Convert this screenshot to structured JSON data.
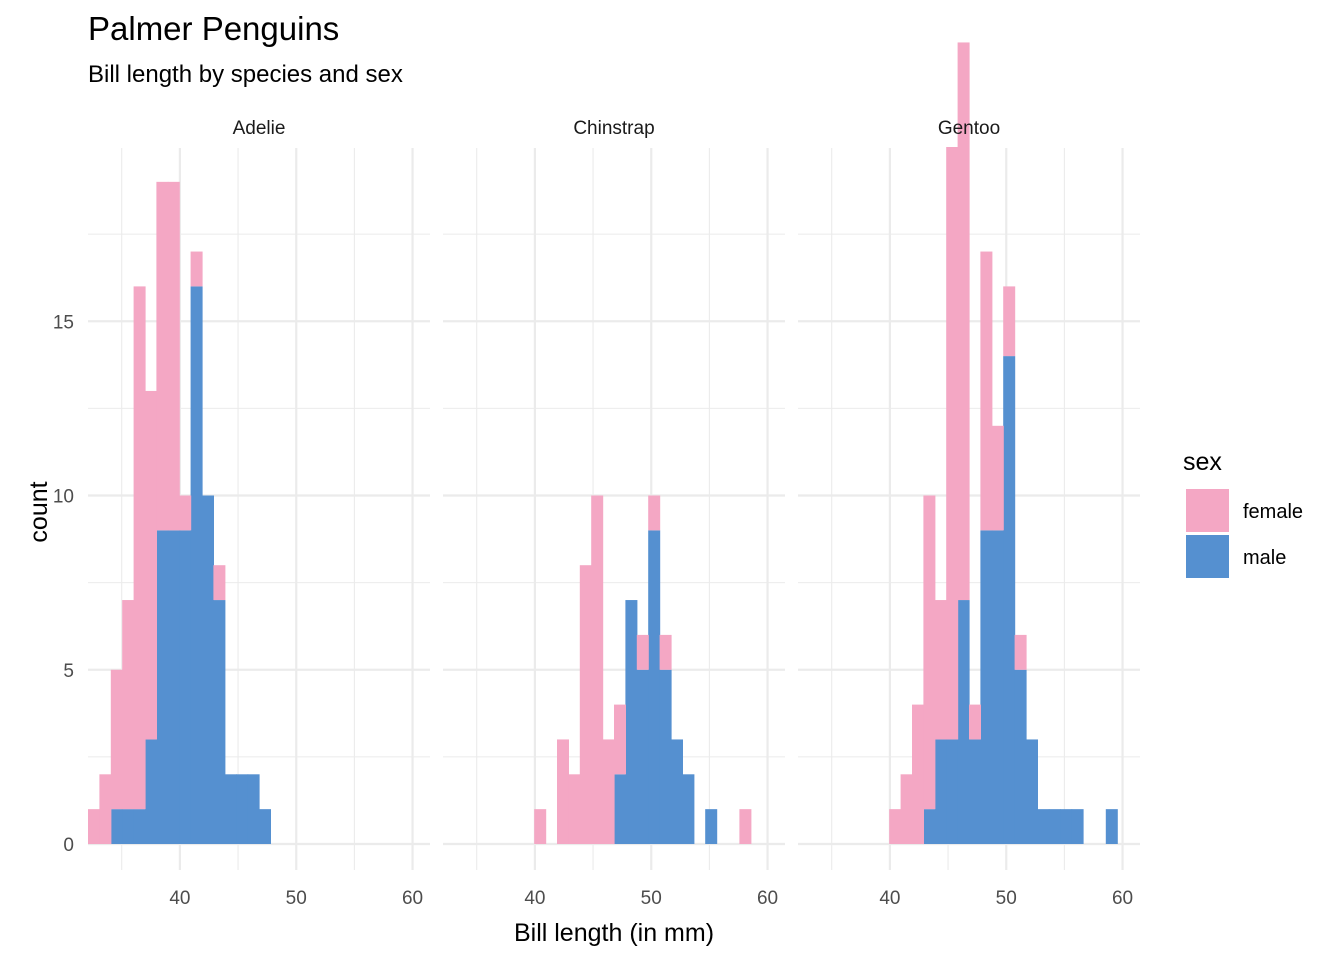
{
  "chart_data": {
    "type": "bar",
    "title": "Palmer Penguins",
    "subtitle": "Bill length by species and sex",
    "xlabel": "Bill length (in mm)",
    "ylabel": "count",
    "xlim": [
      32.1,
      61.5
    ],
    "ylim": [
      0,
      20
    ],
    "x_ticks": [
      40,
      50,
      60
    ],
    "y_ticks": [
      0,
      5,
      10,
      15
    ],
    "bin_width": 0.98,
    "bin_start": 32.1,
    "stacked": true,
    "grid": true,
    "legend": {
      "title": "sex",
      "position": "right"
    },
    "colors": {
      "female": "#f4a7c4",
      "male": "#5590d0"
    },
    "facets": [
      {
        "label": "Adelie",
        "series": [
          {
            "name": "female",
            "bins": [
              [
                0,
                1
              ],
              [
                1,
                2
              ],
              [
                2,
                4
              ],
              [
                3,
                6
              ],
              [
                4,
                15
              ],
              [
                5,
                10
              ],
              [
                6,
                10
              ],
              [
                7,
                10
              ],
              [
                8,
                1
              ],
              [
                9,
                1
              ],
              [
                10,
                0
              ],
              [
                11,
                1
              ],
              [
                12,
                0
              ]
            ]
          },
          {
            "name": "male",
            "bins": [
              [
                2,
                1
              ],
              [
                3,
                1
              ],
              [
                4,
                1
              ],
              [
                5,
                3
              ],
              [
                6,
                9
              ],
              [
                7,
                9
              ],
              [
                8,
                9
              ],
              [
                9,
                16
              ],
              [
                10,
                10
              ],
              [
                11,
                7
              ],
              [
                12,
                2
              ],
              [
                13,
                2
              ],
              [
                14,
                2
              ],
              [
                15,
                1
              ]
            ]
          }
        ]
      },
      {
        "label": "Chinstrap",
        "series": [
          {
            "name": "female",
            "bins": [
              [
                8,
                1
              ],
              [
                10,
                3
              ],
              [
                11,
                2
              ],
              [
                12,
                8
              ],
              [
                13,
                10
              ],
              [
                14,
                3
              ],
              [
                15,
                2
              ],
              [
                16,
                0
              ],
              [
                17,
                1
              ],
              [
                18,
                1
              ],
              [
                19,
                1
              ],
              [
                20,
                0
              ],
              [
                21,
                0
              ],
              [
                24,
                0
              ],
              [
                26,
                1
              ]
            ]
          },
          {
            "name": "male",
            "bins": [
              [
                15,
                2
              ],
              [
                16,
                7
              ],
              [
                17,
                5
              ],
              [
                18,
                9
              ],
              [
                19,
                5
              ],
              [
                20,
                3
              ],
              [
                21,
                2
              ],
              [
                23,
                1
              ]
            ]
          }
        ]
      },
      {
        "label": "Gentoo",
        "series": [
          {
            "name": "female",
            "bins": [
              [
                8,
                1
              ],
              [
                9,
                2
              ],
              [
                10,
                4
              ],
              [
                11,
                9
              ],
              [
                12,
                4
              ],
              [
                13,
                17
              ],
              [
                14,
                16
              ],
              [
                15,
                1
              ],
              [
                16,
                8
              ],
              [
                17,
                3
              ],
              [
                18,
                2
              ],
              [
                19,
                1
              ],
              [
                20,
                0
              ],
              [
                21,
                0
              ],
              [
                22,
                0
              ]
            ]
          },
          {
            "name": "male",
            "bins": [
              [
                11,
                1
              ],
              [
                12,
                3
              ],
              [
                13,
                3
              ],
              [
                14,
                7
              ],
              [
                15,
                3
              ],
              [
                16,
                9
              ],
              [
                17,
                9
              ],
              [
                18,
                14
              ],
              [
                19,
                5
              ],
              [
                20,
                3
              ],
              [
                21,
                1
              ],
              [
                22,
                1
              ],
              [
                23,
                1
              ],
              [
                24,
                1
              ],
              [
                27,
                1
              ]
            ]
          }
        ]
      }
    ]
  }
}
